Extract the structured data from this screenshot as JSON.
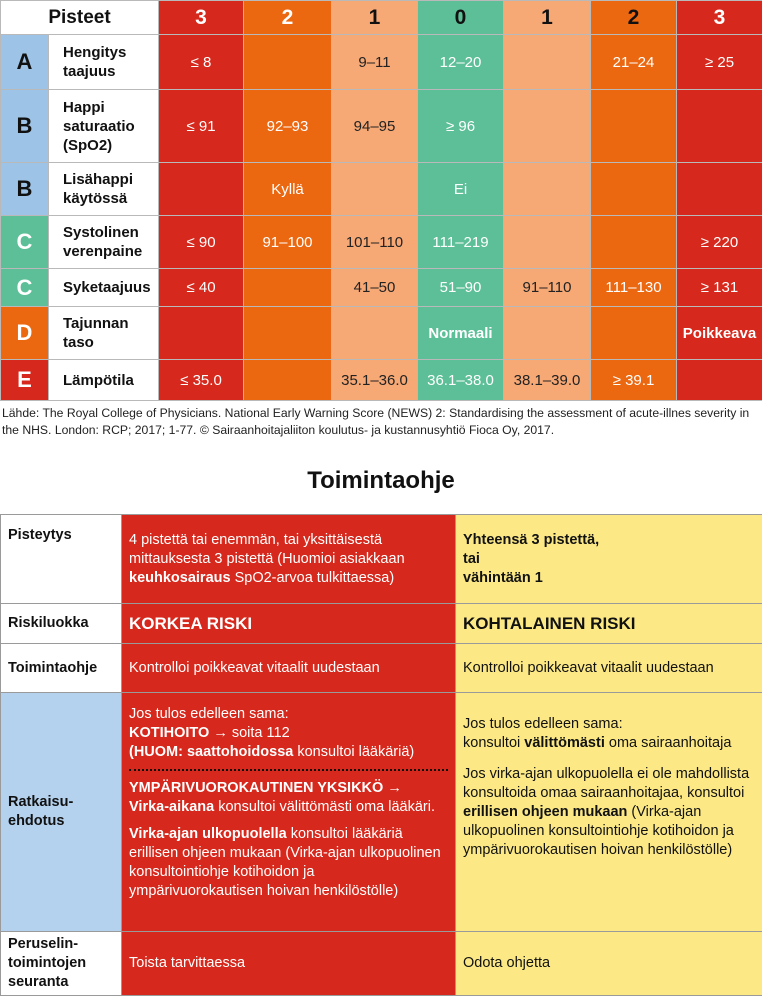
{
  "news": {
    "header": {
      "title": "Pisteet",
      "scores": [
        "3",
        "2",
        "1",
        "0",
        "1",
        "2",
        "3"
      ]
    },
    "rows": [
      {
        "letter": "A",
        "param": [
          "Hengitys",
          "taajuus"
        ],
        "cells": [
          "≤ 8",
          "",
          "9–11",
          "12–20",
          "",
          "21–24",
          "≥ 25"
        ]
      },
      {
        "letter": "B",
        "param": [
          "Happi",
          "saturaatio",
          "(SpO2)"
        ],
        "cells": [
          "≤ 91",
          "92–93",
          "94–95",
          "≥ 96",
          "",
          "",
          ""
        ]
      },
      {
        "letter": "B",
        "param": [
          "Lisähappi",
          "käytössä"
        ],
        "cells": [
          "",
          "Kyllä",
          "",
          "Ei",
          "",
          "",
          ""
        ]
      },
      {
        "letter": "C",
        "param": [
          "Systolinen",
          "verenpaine"
        ],
        "cells": [
          "≤ 90",
          "91–100",
          "101–110",
          "111–219",
          "",
          "",
          "≥ 220"
        ]
      },
      {
        "letter": "C",
        "param": [
          "Syketaajuus"
        ],
        "cells": [
          "≤ 40",
          "",
          "41–50",
          "51–90",
          "91–110",
          "111–130",
          "≥ 131"
        ]
      },
      {
        "letter": "D",
        "param": [
          "Tajunnan",
          "taso"
        ],
        "cells": [
          "",
          "",
          "",
          "Normaali",
          "",
          "",
          "Poikkeava"
        ]
      },
      {
        "letter": "E",
        "param": [
          "Lämpötila"
        ],
        "cells": [
          "≤ 35.0",
          "",
          "35.1–36.0",
          "36.1–38.0",
          "38.1–39.0",
          "≥ 39.1",
          ""
        ]
      }
    ],
    "source": "Lähde: The Royal College of Physicians. National Early Warning Score (NEWS) 2: Standardising the assessment of acute-illnes severity in the NHS. London: RCP; 2017; 1-77. © Sairaanhoitajaliiton koulutus- ja kustannusyhtiö Fioca Oy, 2017."
  },
  "colors": {
    "red": "#d6281c",
    "orange": "#eb6710",
    "peach": "#f6a875",
    "green": "#5cbf97",
    "blue": "#9dc3e6",
    "yellow": "#fce986"
  },
  "action": {
    "title": "Toimintaohje",
    "pisteytys": {
      "label": "Pisteytys",
      "high": {
        "t1": "4 pistettä tai enemmän, tai yksittäisestä mittauksesta 3 pistettä (Huomioi asiakkaan ",
        "b1": "keuhkosairaus",
        "t2": " SpO2-arvoa tulkittaessa)"
      },
      "mid": [
        "Yhteensä 3 pistettä,",
        "tai",
        "vähintään 1"
      ]
    },
    "riskiluokka": {
      "label": "Riskiluokka",
      "high": "KORKEA RISKI",
      "mid": "KOHTALAINEN RISKI"
    },
    "toimintaohje": {
      "label": "Toimintaohje",
      "high": "Kontrolloi poikkeavat vitaalit uudestaan",
      "mid": "Kontrolloi poikkeavat vitaalit uudestaan"
    },
    "ratkaisu": {
      "label": [
        "Ratkaisu-",
        "ehdotus"
      ],
      "high": {
        "intro": "Jos tulos edelleen sama:",
        "kotihoito_b": "KOTIHOITO",
        "kotihoito_t": " → soita 112",
        "huom_b": "(HUOM: saattohoidossa",
        "huom_t": " konsultoi lääkäriä)",
        "ymp_b": "YMPÄRIVUOROKAUTINEN YKSIKKÖ →",
        "virka_b": "Virka-aikana",
        "virka_t": " konsultoi välittömästi oma lääkäri.",
        "ulko_b": "Virka-ajan ulkopuolella",
        "ulko_t": " konsultoi lääkäriä erillisen ohjeen mukaan (Virka-ajan ulkopuolinen konsultointiohje kotihoidon ja ympärivuorokautisen hoivan henkilöstölle)"
      },
      "mid": {
        "intro": "Jos tulos edelleen sama:",
        "k_t1": "konsultoi ",
        "k_b": "välittömästi",
        "k_t2": " oma sairaan­hoitaja",
        "p_t1": "Jos virka-ajan ulkopuolella ei ole mahdollista konsultoida omaa sairaan­hoitajaa, konsultoi ",
        "p_b": "erillisen ohjeen mukaan",
        "p_t2": " (Virka-ajan ulkopuolinen konsultointiohje kotihoidon ja ympäri­vuorokautisen hoivan henkilöstölle)"
      }
    },
    "seuranta": {
      "label": [
        "Peruselin-",
        "toimintojen",
        "seuranta"
      ],
      "high": "Toista tarvittaessa",
      "mid": "Odota ohjetta"
    }
  }
}
